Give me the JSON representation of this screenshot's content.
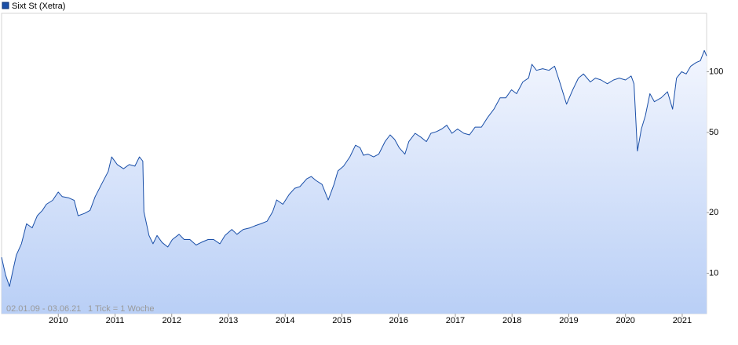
{
  "chart_data": {
    "type": "line",
    "log_scale": true,
    "legend": "top-left",
    "date_range": "02.01.09 - 03.06.21",
    "tick_note": "1 Tick = 1 Woche",
    "x": [
      2009.0,
      2009.07,
      2009.14,
      2009.19,
      2009.26,
      2009.35,
      2009.44,
      2009.54,
      2009.63,
      2009.72,
      2009.79,
      2009.9,
      2010.0,
      2010.07,
      2010.18,
      2010.28,
      2010.35,
      2010.46,
      2010.56,
      2010.65,
      2010.76,
      2010.88,
      2010.94,
      2011.04,
      2011.15,
      2011.25,
      2011.35,
      2011.43,
      2011.49,
      2011.51,
      2011.6,
      2011.67,
      2011.74,
      2011.83,
      2011.93,
      2012.01,
      2012.13,
      2012.22,
      2012.32,
      2012.43,
      2012.54,
      2012.64,
      2012.74,
      2012.85,
      2012.94,
      2013.06,
      2013.15,
      2013.26,
      2013.38,
      2013.47,
      2013.57,
      2013.68,
      2013.78,
      2013.85,
      2013.96,
      2014.07,
      2014.17,
      2014.26,
      2014.38,
      2014.46,
      2014.54,
      2014.65,
      2014.76,
      2014.86,
      2014.93,
      2015.03,
      2015.14,
      2015.24,
      2015.32,
      2015.38,
      2015.46,
      2015.56,
      2015.65,
      2015.76,
      2015.85,
      2015.93,
      2016.01,
      2016.11,
      2016.18,
      2016.29,
      2016.39,
      2016.49,
      2016.57,
      2016.67,
      2016.76,
      2016.85,
      2016.94,
      2017.04,
      2017.15,
      2017.25,
      2017.35,
      2017.46,
      2017.57,
      2017.68,
      2017.79,
      2017.89,
      2017.99,
      2018.08,
      2018.19,
      2018.29,
      2018.35,
      2018.43,
      2018.54,
      2018.65,
      2018.75,
      2018.85,
      2018.96,
      2019.07,
      2019.17,
      2019.26,
      2019.38,
      2019.47,
      2019.57,
      2019.68,
      2019.79,
      2019.89,
      2020.0,
      2020.1,
      2020.15,
      2020.21,
      2020.28,
      2020.35,
      2020.43,
      2020.51,
      2020.63,
      2020.74,
      2020.83,
      2020.9,
      2020.99,
      2021.07,
      2021.15,
      2021.25,
      2021.32,
      2021.39,
      2021.43
    ],
    "series": [
      {
        "name": "Sixt St (Xetra)",
        "color": "#1a4fa8",
        "values": [
          12,
          9.8,
          8.6,
          10,
          12.3,
          14,
          17.6,
          16.8,
          19.3,
          20.5,
          22,
          23,
          25.3,
          24,
          23.7,
          23,
          19.3,
          19.8,
          20.5,
          24,
          27.6,
          32,
          37.8,
          34.6,
          33,
          34.6,
          34,
          37.8,
          36,
          20.2,
          15.4,
          14,
          15.4,
          14.2,
          13.5,
          14.7,
          15.6,
          14.7,
          14.7,
          13.8,
          14.3,
          14.7,
          14.7,
          14,
          15.4,
          16.5,
          15.6,
          16.5,
          16.8,
          17.2,
          17.6,
          18.1,
          20.2,
          23.1,
          22,
          24.6,
          26.4,
          26.9,
          29.4,
          30.2,
          28.9,
          27.6,
          23.1,
          27.6,
          32.2,
          34,
          37.8,
          43.2,
          42,
          38.5,
          39,
          37.8,
          39,
          45,
          48.6,
          46.1,
          42,
          39,
          45,
          49.5,
          47.4,
          45,
          49.5,
          50.5,
          52,
          54.3,
          49.5,
          52,
          49.5,
          48.6,
          53.1,
          53.1,
          59.3,
          65.2,
          74.3,
          74.3,
          81.4,
          77.8,
          89,
          93,
          108.9,
          101.6,
          103.6,
          101.6,
          106.6,
          87.2,
          69,
          81.4,
          93,
          97.5,
          89,
          93,
          91,
          87.2,
          91,
          93,
          91,
          95.3,
          87.2,
          40.4,
          52,
          60.5,
          77.8,
          71,
          74.3,
          79.6,
          65.2,
          93,
          100,
          97.5,
          106.6,
          111.3,
          113.5,
          127.6,
          119.9
        ]
      }
    ],
    "xlim": [
      2009.0,
      2021.43
    ],
    "xticks": [
      2010,
      2011,
      2012,
      2013,
      2014,
      2015,
      2016,
      2017,
      2018,
      2019,
      2020,
      2021
    ],
    "ylim": [
      6.3,
      195
    ],
    "yticks": [
      10,
      20,
      50,
      100
    ]
  }
}
